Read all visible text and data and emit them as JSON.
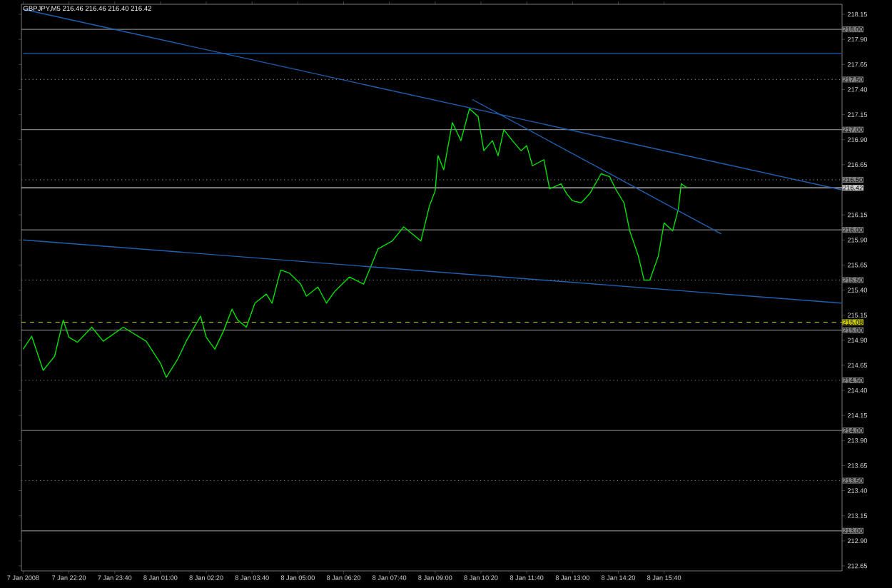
{
  "chart_data": {
    "type": "line",
    "title": "GBPJPY,M5 216.46 216.46 216.40 216.42",
    "xlim": [
      "2008-01-07T20:57",
      "2008-01-08T20:51"
    ],
    "ylim": [
      212.6,
      218.25
    ],
    "xticks": [
      {
        "value": "2008-01-07T21:00",
        "label": "7 Jan 2008"
      },
      {
        "value": "2008-01-07T22:20",
        "label": "7 Jan 22:20"
      },
      {
        "value": "2008-01-07T23:40",
        "label": "7 Jan 23:40"
      },
      {
        "value": "2008-01-08T01:00",
        "label": "8 Jan 01:00"
      },
      {
        "value": "2008-01-08T02:20",
        "label": "8 Jan 02:20"
      },
      {
        "value": "2008-01-08T03:40",
        "label": "8 Jan 03:40"
      },
      {
        "value": "2008-01-08T05:00",
        "label": "8 Jan 05:00"
      },
      {
        "value": "2008-01-08T06:20",
        "label": "8 Jan 06:20"
      },
      {
        "value": "2008-01-08T07:40",
        "label": "8 Jan 07:40"
      },
      {
        "value": "2008-01-08T09:00",
        "label": "8 Jan 09:00"
      },
      {
        "value": "2008-01-08T10:20",
        "label": "8 Jan 10:20"
      },
      {
        "value": "2008-01-08T11:40",
        "label": "8 Jan 11:40"
      },
      {
        "value": "2008-01-08T13:00",
        "label": "8 Jan 13:00"
      },
      {
        "value": "2008-01-08T14:20",
        "label": "8 Jan 14:20"
      },
      {
        "value": "2008-01-08T15:40",
        "label": "8 Jan 15:40"
      }
    ],
    "yticks": [
      {
        "value": 212.65,
        "label": "212.65"
      },
      {
        "value": 212.9,
        "label": "212.90"
      },
      {
        "value": 213.15,
        "label": "213.15"
      },
      {
        "value": 213.4,
        "label": "213.40"
      },
      {
        "value": 213.65,
        "label": "213.65"
      },
      {
        "value": 213.9,
        "label": "213.90"
      },
      {
        "value": 214.15,
        "label": "214.15"
      },
      {
        "value": 214.4,
        "label": "214.40"
      },
      {
        "value": 214.65,
        "label": "214.65"
      },
      {
        "value": 214.9,
        "label": "214.90"
      },
      {
        "value": 215.15,
        "label": "215.15"
      },
      {
        "value": 215.4,
        "label": "215.40"
      },
      {
        "value": 215.65,
        "label": "215.65"
      },
      {
        "value": 215.9,
        "label": "215.90"
      },
      {
        "value": 216.15,
        "label": "216.15"
      },
      {
        "value": 216.65,
        "label": "216.65"
      },
      {
        "value": 216.9,
        "label": "216.90"
      },
      {
        "value": 217.15,
        "label": "217.15"
      },
      {
        "value": 217.4,
        "label": "217.40"
      },
      {
        "value": 217.65,
        "label": "217.65"
      },
      {
        "value": 217.9,
        "label": "217.90"
      },
      {
        "value": 218.15,
        "label": "218.15"
      }
    ],
    "series": [
      {
        "color": "#00e000",
        "x": [
          "2008-01-07T21:00",
          "2008-01-07T21:15",
          "2008-01-07T21:35",
          "2008-01-07T21:55",
          "2008-01-07T22:10",
          "2008-01-07T22:20",
          "2008-01-07T22:35",
          "2008-01-07T23:00",
          "2008-01-07T23:20",
          "2008-01-07T23:55",
          "2008-01-08T00:35",
          "2008-01-08T01:00",
          "2008-01-08T01:10",
          "2008-01-08T01:30",
          "2008-01-08T01:45",
          "2008-01-08T02:10",
          "2008-01-08T02:20",
          "2008-01-08T02:35",
          "2008-01-08T02:50",
          "2008-01-08T03:05",
          "2008-01-08T03:15",
          "2008-01-08T03:30",
          "2008-01-08T03:45",
          "2008-01-08T04:05",
          "2008-01-08T04:15",
          "2008-01-08T04:30",
          "2008-01-08T04:45",
          "2008-01-08T05:05",
          "2008-01-08T05:15",
          "2008-01-08T05:35",
          "2008-01-08T05:50",
          "2008-01-08T06:05",
          "2008-01-08T06:30",
          "2008-01-08T06:55",
          "2008-01-08T07:20",
          "2008-01-08T07:45",
          "2008-01-08T08:05",
          "2008-01-08T08:20",
          "2008-01-08T08:35",
          "2008-01-08T08:50",
          "2008-01-08T09:00",
          "2008-01-08T09:05",
          "2008-01-08T09:15",
          "2008-01-08T09:30",
          "2008-01-08T09:45",
          "2008-01-08T10:00",
          "2008-01-08T10:15",
          "2008-01-08T10:25",
          "2008-01-08T10:40",
          "2008-01-08T10:50",
          "2008-01-08T11:00",
          "2008-01-08T11:15",
          "2008-01-08T11:30",
          "2008-01-08T11:40",
          "2008-01-08T11:50",
          "2008-01-08T12:10",
          "2008-01-08T12:20",
          "2008-01-08T12:40",
          "2008-01-08T12:50",
          "2008-01-08T13:00",
          "2008-01-08T13:15",
          "2008-01-08T13:30",
          "2008-01-08T13:50",
          "2008-01-08T14:05",
          "2008-01-08T14:15",
          "2008-01-08T14:30",
          "2008-01-08T14:40",
          "2008-01-08T14:55",
          "2008-01-08T15:05",
          "2008-01-08T15:15",
          "2008-01-08T15:30",
          "2008-01-08T15:40",
          "2008-01-08T15:55",
          "2008-01-08T16:05",
          "2008-01-08T16:10",
          "2008-01-08T16:20"
        ],
        "values": [
          214.81,
          214.94,
          214.6,
          214.74,
          215.1,
          214.93,
          214.88,
          215.03,
          214.89,
          215.03,
          214.89,
          214.67,
          214.53,
          214.71,
          214.89,
          215.14,
          214.93,
          214.81,
          214.99,
          215.21,
          215.1,
          215.03,
          215.27,
          215.36,
          215.27,
          215.6,
          215.57,
          215.46,
          215.34,
          215.43,
          215.27,
          215.39,
          215.53,
          215.46,
          215.81,
          215.89,
          216.03,
          215.96,
          215.89,
          216.24,
          216.39,
          216.74,
          216.6,
          217.07,
          216.89,
          217.21,
          217.13,
          216.79,
          216.89,
          216.74,
          217.0,
          216.89,
          216.79,
          216.84,
          216.64,
          216.7,
          216.41,
          216.46,
          216.36,
          216.29,
          216.27,
          216.36,
          216.56,
          216.53,
          216.41,
          216.27,
          215.99,
          215.74,
          215.5,
          215.5,
          215.74,
          216.07,
          215.99,
          216.21,
          216.46,
          216.42
        ]
      },
      {
        "color": "#2060b0",
        "x": [
          "2008-01-07T21:00",
          "2008-01-08T20:50"
        ],
        "values": [
          218.2,
          216.4
        ]
      },
      {
        "color": "#2060b0",
        "x": [
          "2008-01-07T21:00",
          "2008-01-08T20:50"
        ],
        "values": [
          217.76,
          217.76
        ]
      },
      {
        "color": "#2060b0",
        "x": [
          "2008-01-07T21:00",
          "2008-01-08T20:50"
        ],
        "values": [
          215.9,
          215.27
        ]
      },
      {
        "color": "#2060b0",
        "x": [
          "2008-01-08T10:05",
          "2008-01-08T17:20"
        ],
        "values": [
          217.3,
          215.96
        ]
      }
    ],
    "ref_lines": [
      {
        "axis": "y",
        "value": 218,
        "label": "218.00",
        "color": "#808080",
        "line_style": "solid"
      },
      {
        "axis": "y",
        "value": 217.5,
        "label": "217.50",
        "color": "#808080",
        "line_style": "dotted"
      },
      {
        "axis": "y",
        "value": 217,
        "label": "217.00",
        "color": "#808080",
        "line_style": "solid"
      },
      {
        "axis": "y",
        "value": 216.5,
        "label": "216.50",
        "color": "#808080",
        "line_style": "dotted"
      },
      {
        "axis": "y",
        "value": 216.42,
        "label": "216.42",
        "color": "#d0d0d0",
        "line_style": "solid"
      },
      {
        "axis": "y",
        "value": 216,
        "label": "216.00",
        "color": "#808080",
        "line_style": "solid"
      },
      {
        "axis": "y",
        "value": 215.5,
        "label": "215.50",
        "color": "#808080",
        "line_style": "dotted"
      },
      {
        "axis": "y",
        "value": 215.08,
        "label": "215.08",
        "color": "#c8c800",
        "line_style": "dashed"
      },
      {
        "axis": "y",
        "value": 215,
        "label": "215.00",
        "color": "#808080",
        "line_style": "solid"
      },
      {
        "axis": "y",
        "value": 214.5,
        "label": "214.50",
        "color": "#808080",
        "line_style": "dotted"
      },
      {
        "axis": "y",
        "value": 214,
        "label": "214.00",
        "color": "#808080",
        "line_style": "solid"
      },
      {
        "axis": "y",
        "value": 213.5,
        "label": "213.50",
        "color": "#808080",
        "line_style": "dotted"
      },
      {
        "axis": "y",
        "value": 213,
        "label": "213.00",
        "color": "#808080",
        "line_style": "solid"
      }
    ]
  }
}
